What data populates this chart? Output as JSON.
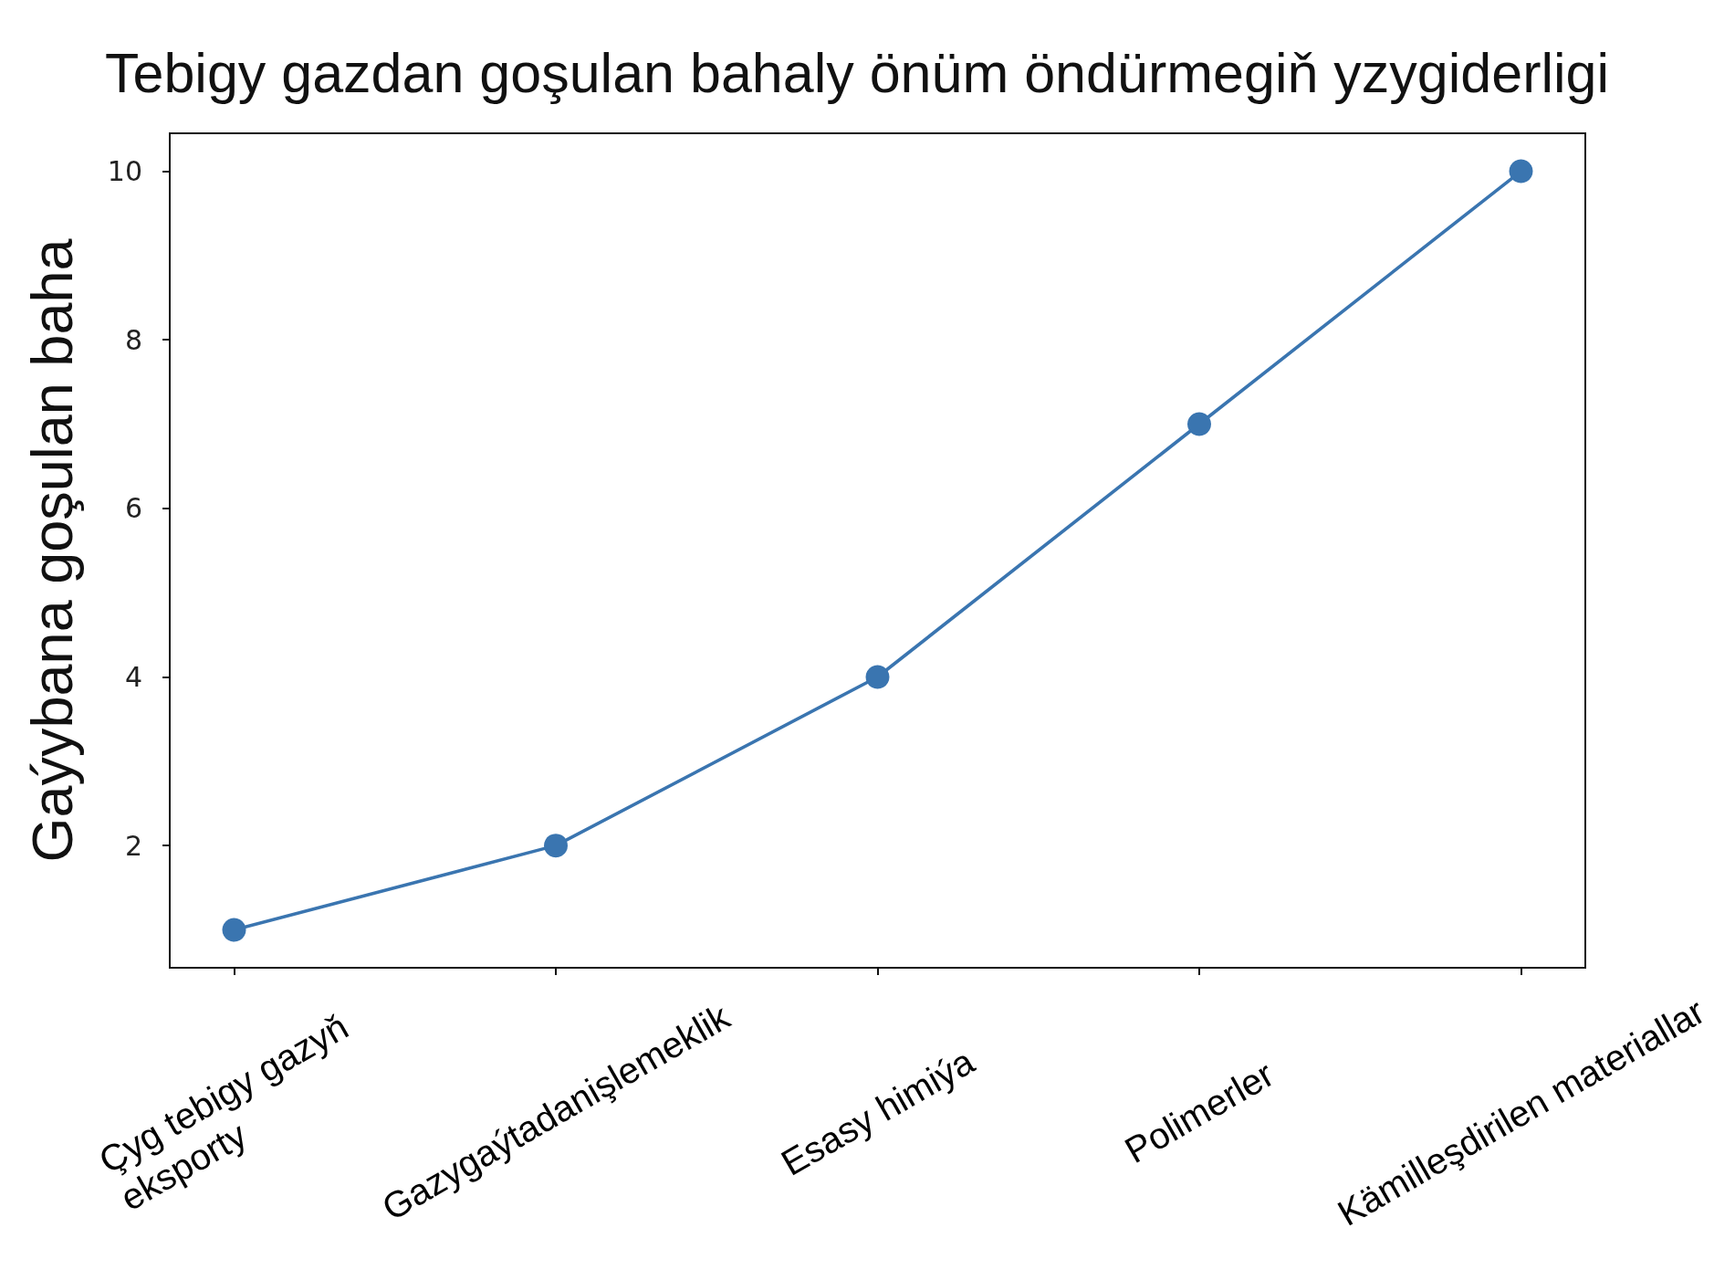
{
  "chart_data": {
    "type": "line",
    "title": "Tebigy gazdan goşulan bahaly önüm öndürmegiň yzygiderligi",
    "ylabel": "Gaýybana goşulan baha",
    "categories": [
      "Çyg tebigy gazyň\neksporty",
      "Gazygaýtadanişlemeklik",
      "Esasy himiýa",
      "Polimerler",
      "Kämilleşdirilen materiallar"
    ],
    "values": [
      1,
      2,
      4,
      7,
      10
    ],
    "color": "#3a75b0",
    "ylim": [
      0.55,
      10.45
    ],
    "yticks": [
      2,
      4,
      6,
      8,
      10
    ],
    "marker": "circle",
    "line_style": "solid"
  }
}
